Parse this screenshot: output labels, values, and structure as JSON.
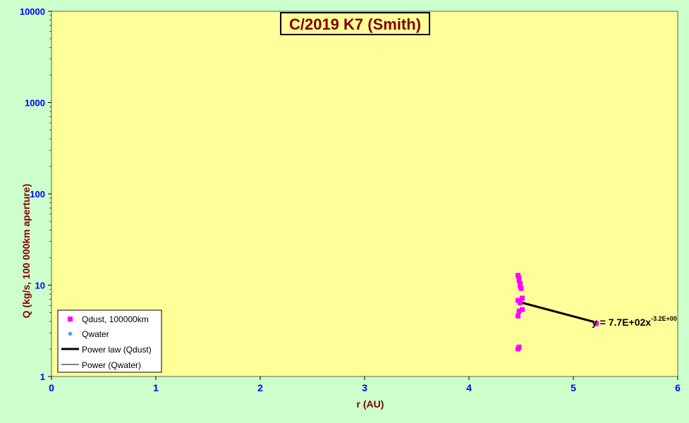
{
  "chart_data": {
    "type": "scatter",
    "title": "C/2019 K7 (Smith)",
    "xlabel": "r (AU)",
    "ylabel": "Q (kg/s, 100 000km aperture)",
    "xlim": [
      0,
      6
    ],
    "ylim": [
      1,
      10000
    ],
    "y_scale": "log",
    "x_ticks": [
      "0",
      "1",
      "2",
      "3",
      "4",
      "5",
      "6"
    ],
    "y_ticks": [
      "1",
      "10",
      "100",
      "1000",
      "10000"
    ],
    "grid": false,
    "legend_position": "bottom-left",
    "series": [
      {
        "name": "Qdust, 100000km",
        "kind": "scatter",
        "color": "#ff00ff",
        "marker": "square",
        "points": [
          {
            "x": 4.47,
            "y": 12.8
          },
          {
            "x": 4.48,
            "y": 12.0
          },
          {
            "x": 4.48,
            "y": 11.2
          },
          {
            "x": 4.49,
            "y": 10.4
          },
          {
            "x": 4.49,
            "y": 9.8
          },
          {
            "x": 4.5,
            "y": 9.2
          },
          {
            "x": 4.51,
            "y": 7.2
          },
          {
            "x": 4.47,
            "y": 6.8
          },
          {
            "x": 4.49,
            "y": 6.4
          },
          {
            "x": 4.51,
            "y": 5.4
          },
          {
            "x": 4.48,
            "y": 5.2
          },
          {
            "x": 4.47,
            "y": 4.6
          },
          {
            "x": 4.48,
            "y": 2.1
          },
          {
            "x": 4.47,
            "y": 2.0
          },
          {
            "x": 5.22,
            "y": 3.8
          }
        ]
      },
      {
        "name": "Qwater",
        "kind": "scatter",
        "color": "#4f9fd8",
        "marker": "diamond",
        "points": []
      },
      {
        "name": "Power law (Qdust)",
        "kind": "fit",
        "color": "#000000",
        "coefficient": 770,
        "exponent": -3.2,
        "x_range": [
          4.47,
          5.22
        ]
      },
      {
        "name": "Power (Qwater)",
        "kind": "fit",
        "color": "#000000",
        "points": []
      }
    ],
    "annotations": [
      {
        "text": "y = 7.7E+02x",
        "superscript": "-3.2E+00"
      }
    ]
  }
}
